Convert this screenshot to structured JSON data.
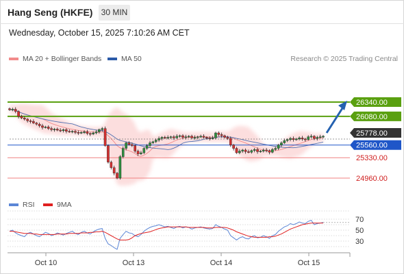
{
  "header": {
    "title": "Hang Seng (HKFE)",
    "timeframe": "30 MIN"
  },
  "date_line": "Wednesday, October 15, 2025 7:10:26 AM CET",
  "legend": {
    "bollinger": {
      "label": "MA 20 + Bollinger Bands",
      "color": "#f28b8b"
    },
    "ma50": {
      "label": "MA 50",
      "color": "#2b5aa8"
    }
  },
  "credit": "Research © 2025 Trading Central",
  "rsi_legend": {
    "rsi": {
      "label": "RSI",
      "color": "#5b86d6"
    },
    "ma": {
      "label": "9MA",
      "color": "#e02020"
    }
  },
  "chart_data": {
    "type": "candlestick",
    "x_ticks": [
      "Oct 10",
      "Oct 13",
      "Oct 14",
      "Oct 15"
    ],
    "price_range": [
      24920,
      26400
    ],
    "current_price": "25778.00",
    "levels": [
      {
        "value": 26340,
        "label": "26340.00",
        "kind": "resistance",
        "color": "#5aa010"
      },
      {
        "value": 26080,
        "label": "26080.00",
        "kind": "resistance",
        "color": "#5aa010"
      },
      {
        "value": 25560,
        "label": "25560.00",
        "kind": "pivot",
        "color": "#1f56c8"
      },
      {
        "value": 25330,
        "label": "25330.00",
        "kind": "support",
        "color": "#f08080"
      },
      {
        "value": 24960,
        "label": "24960.00",
        "kind": "support",
        "color": "#f08080"
      }
    ],
    "closes": [
      26200,
      26210,
      26170,
      26080,
      26050,
      26030,
      26000,
      25990,
      25960,
      25940,
      25910,
      25880,
      25890,
      25860,
      25840,
      25850,
      25830,
      25820,
      25840,
      25810,
      25800,
      25810,
      25790,
      25780,
      25790,
      25800,
      25770,
      25760,
      25780,
      25800,
      25840,
      25860,
      25550,
      25250,
      25150,
      25050,
      24960,
      25350,
      25500,
      25600,
      25570,
      25550,
      25450,
      25400,
      25420,
      25500,
      25550,
      25600,
      25620,
      25650,
      25680,
      25700,
      25690,
      25700,
      25710,
      25690,
      25720,
      25730,
      25700,
      25710,
      25720,
      25690,
      25700,
      25710,
      25720,
      25700,
      25690,
      25680,
      25690,
      25780,
      25750,
      25730,
      25700,
      25680,
      25560,
      25500,
      25420,
      25450,
      25470,
      25440,
      25430,
      25460,
      25480,
      25440,
      25450,
      25470,
      25460,
      25430,
      25480,
      25500,
      25560,
      25600,
      25640,
      25660,
      25680,
      25660,
      25670,
      25690,
      25670,
      25660,
      25710,
      25720,
      25680,
      25700,
      25710,
      25720
    ],
    "rsi": {
      "levels": [
        70,
        50,
        30
      ],
      "range": [
        10,
        85
      ],
      "values": [
        48,
        50,
        45,
        42,
        40,
        38,
        44,
        46,
        43,
        40,
        38,
        42,
        46,
        44,
        40,
        42,
        45,
        43,
        41,
        44,
        46,
        48,
        44,
        42,
        46,
        48,
        45,
        43,
        47,
        50,
        52,
        53,
        35,
        25,
        22,
        18,
        15,
        35,
        42,
        48,
        45,
        44,
        40,
        38,
        42,
        48,
        52,
        55,
        57,
        58,
        60,
        58,
        56,
        57,
        55,
        53,
        56,
        57,
        54,
        56,
        55,
        52,
        54,
        55,
        56,
        54,
        53,
        52,
        53,
        60,
        57,
        55,
        52,
        50,
        40,
        36,
        32,
        36,
        38,
        35,
        34,
        38,
        40,
        36,
        37,
        40,
        38,
        35,
        40,
        42,
        48,
        52,
        56,
        58,
        62,
        60,
        62,
        65,
        63,
        62,
        66,
        68,
        60,
        62,
        63,
        64
      ],
      "ma9": [
        48,
        48,
        47,
        46,
        45,
        44,
        44,
        44,
        43,
        43,
        42,
        42,
        42,
        42,
        42,
        42,
        43,
        43,
        43,
        43,
        44,
        44,
        44,
        44,
        45,
        45,
        45,
        46,
        46,
        47,
        47,
        48,
        46,
        43,
        40,
        37,
        34,
        32,
        32,
        32,
        33,
        36,
        40,
        42,
        44,
        45,
        46,
        47,
        49,
        51,
        53,
        54,
        55,
        56,
        56,
        56,
        56,
        56,
        56,
        56,
        55,
        55,
        55,
        55,
        55,
        55,
        54,
        54,
        54,
        55,
        55,
        55,
        55,
        54,
        52,
        50,
        47,
        45,
        43,
        41,
        39,
        38,
        37,
        37,
        37,
        37,
        37,
        38,
        38,
        39,
        41,
        43,
        46,
        49,
        52,
        54,
        56,
        58,
        60,
        61,
        62,
        63,
        63,
        63,
        63,
        63
      ]
    }
  }
}
